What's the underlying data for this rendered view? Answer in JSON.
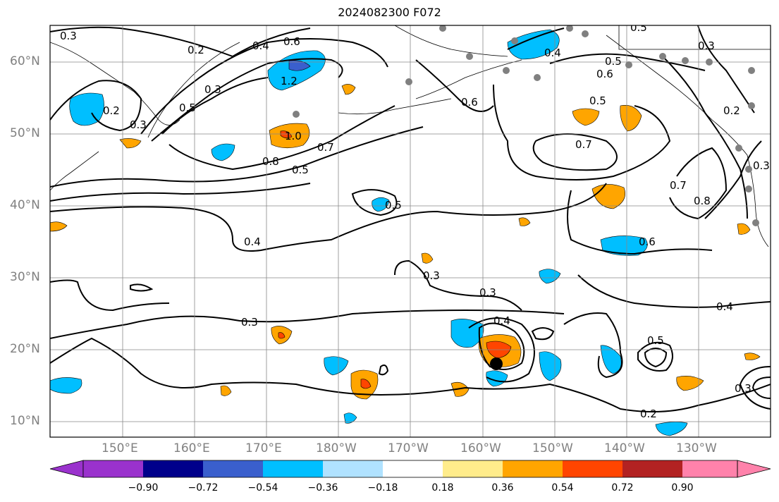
{
  "title": "2024082300 F072",
  "map": {
    "region": "North Pacific",
    "lat_labels": [
      "60°N",
      "50°N",
      "40°N",
      "30°N",
      "20°N",
      "10°N"
    ],
    "lon_labels": [
      "150°E",
      "160°E",
      "170°E",
      "180°W",
      "170°W",
      "160°W",
      "150°W",
      "140°W",
      "130°W"
    ],
    "grid": true,
    "storm_marker": "black dot near 18°N 158°W"
  },
  "contour_labels": [
    "0.3",
    "0.2",
    "0.4",
    "0.6",
    "0.3",
    "0.5",
    "1.2",
    "0.2",
    "0.3",
    "1.0",
    "0.8",
    "0.7",
    "0.5",
    "0.5",
    "0.4",
    "0.3",
    "0.3",
    "0.4",
    "0.3",
    "0.4",
    "0.6",
    "0.5",
    "0.6",
    "0.5",
    "0.7",
    "0.7",
    "0.8",
    "0.6",
    "0.4",
    "0.5",
    "0.5",
    "0.2",
    "0.3",
    "0.2",
    "0.3",
    "0.3"
  ],
  "colorbar": {
    "colors": [
      "#9a32cd",
      "#00008b",
      "#3a5fcd",
      "#00bfff",
      "#b0e2ff",
      "#ffffff",
      "#ffec8b",
      "#ffa500",
      "#ff4500",
      "#b22222",
      "#ff82ab"
    ],
    "tick_labels": [
      "−0.90",
      "−0.72",
      "−0.54",
      "−0.36",
      "−0.18",
      "0.18",
      "0.36",
      "0.54",
      "0.72",
      "0.90"
    ]
  }
}
